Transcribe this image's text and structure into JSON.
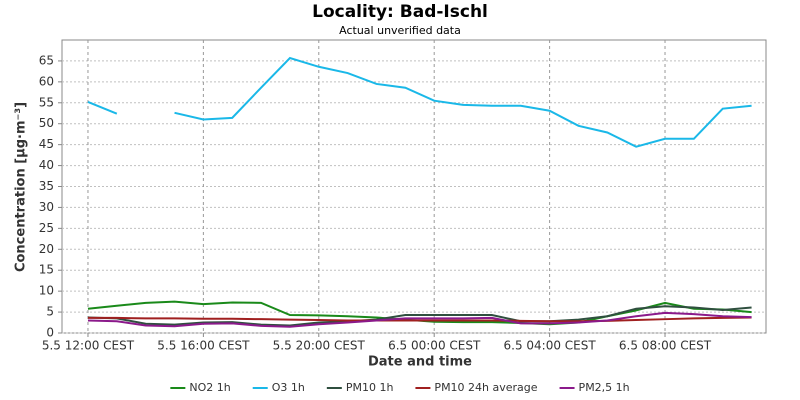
{
  "chart_data": {
    "type": "line",
    "title": "Locality: Bad-Ischl",
    "subtitle": "Actual unverified data",
    "x_label": "Date and time",
    "y_label": "Concentration [µg·m⁻³]",
    "x": [
      0,
      1,
      2,
      3,
      4,
      5,
      6,
      7,
      8,
      9,
      10,
      11,
      12,
      13,
      14,
      15,
      16,
      17,
      18,
      19,
      20,
      21,
      22,
      23
    ],
    "xlim": [
      -0.9,
      23.5
    ],
    "xticks": [
      {
        "value": 0,
        "label": "5.5 12:00 CEST"
      },
      {
        "value": 4,
        "label": "5.5 16:00 CEST"
      },
      {
        "value": 8,
        "label": "5.5 20:00 CEST"
      },
      {
        "value": 12,
        "label": "6.5 00:00 CEST"
      },
      {
        "value": 16,
        "label": "6.5 04:00 CEST"
      },
      {
        "value": 20,
        "label": "6.5 08:00 CEST"
      }
    ],
    "ylim": [
      0,
      70
    ],
    "yticks": [
      0,
      5,
      10,
      15,
      20,
      25,
      30,
      35,
      40,
      45,
      50,
      55,
      60,
      65
    ],
    "grid": true,
    "legend": "bottom",
    "series": [
      {
        "name": "NO2 1h",
        "color": "#1a8a1a",
        "values": [
          5.8,
          6.5,
          7.2,
          7.5,
          6.9,
          7.3,
          7.2,
          4.3,
          4.2,
          4.0,
          3.7,
          3.2,
          2.7,
          2.6,
          2.6,
          2.4,
          2.1,
          2.5,
          4.0,
          5.4,
          7.2,
          5.8,
          5.6,
          5.0
        ]
      },
      {
        "name": "O3 1h",
        "color": "#1ab8e8",
        "values": [
          55.2,
          52.4,
          null,
          52.6,
          51.0,
          51.4,
          58.6,
          65.7,
          63.6,
          62.1,
          59.5,
          58.6,
          55.5,
          54.5,
          54.3,
          54.3,
          53.1,
          49.5,
          47.9,
          44.5,
          46.4,
          46.4,
          53.6,
          54.3
        ]
      },
      {
        "name": "PM10 1h",
        "color": "#2f4f3f",
        "values": [
          3.7,
          3.5,
          2.2,
          2.0,
          2.5,
          2.6,
          2.0,
          1.8,
          2.5,
          2.8,
          3.2,
          4.3,
          4.3,
          4.3,
          4.3,
          2.8,
          2.8,
          3.2,
          4.0,
          5.8,
          6.4,
          6.1,
          5.5,
          6.1
        ]
      },
      {
        "name": "PM10 24h average",
        "color": "#a02020",
        "values": [
          3.6,
          3.6,
          3.5,
          3.5,
          3.4,
          3.4,
          3.3,
          3.2,
          3.1,
          3.0,
          3.0,
          3.0,
          3.0,
          3.0,
          3.0,
          2.9,
          2.8,
          2.8,
          2.9,
          3.1,
          3.3,
          3.5,
          3.6,
          3.7
        ]
      },
      {
        "name": "PM2,5 1h",
        "color": "#8b1a8b",
        "values": [
          3.0,
          2.8,
          1.8,
          1.6,
          2.2,
          2.3,
          1.7,
          1.5,
          2.1,
          2.5,
          3.0,
          3.5,
          3.5,
          3.5,
          3.6,
          2.3,
          2.3,
          2.5,
          3.0,
          4.0,
          4.8,
          4.5,
          4.0,
          3.8
        ]
      }
    ]
  }
}
